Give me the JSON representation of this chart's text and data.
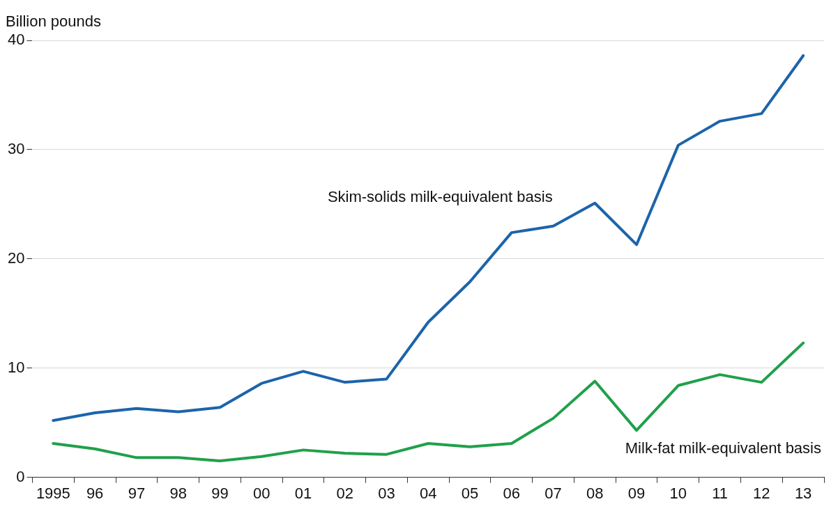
{
  "chart_data": {
    "type": "line",
    "ylabel": "Billion pounds",
    "categories": [
      "1995",
      "96",
      "97",
      "98",
      "99",
      "00",
      "01",
      "02",
      "03",
      "04",
      "05",
      "06",
      "07",
      "08",
      "09",
      "10",
      "11",
      "12",
      "13"
    ],
    "series": [
      {
        "name": "Skim-solids milk-equivalent basis",
        "color": "#1c64ab",
        "values": [
          5.2,
          5.9,
          6.3,
          6.0,
          6.4,
          8.6,
          9.7,
          8.7,
          9.0,
          14.2,
          17.9,
          22.4,
          23.0,
          25.1,
          21.3,
          30.4,
          32.6,
          33.3,
          38.6
        ]
      },
      {
        "name": "Milk-fat milk-equivalent basis",
        "color": "#20a04a",
        "values": [
          3.1,
          2.6,
          1.8,
          1.8,
          1.5,
          1.9,
          2.5,
          2.2,
          2.1,
          3.1,
          2.8,
          3.1,
          5.4,
          8.8,
          4.3,
          8.4,
          9.4,
          8.7,
          12.3
        ]
      }
    ],
    "ylim": [
      0,
      40
    ],
    "yticks": [
      0,
      10,
      20,
      30,
      40
    ],
    "grid": "y",
    "legend": false,
    "marker": "none",
    "line_style": "solid"
  }
}
